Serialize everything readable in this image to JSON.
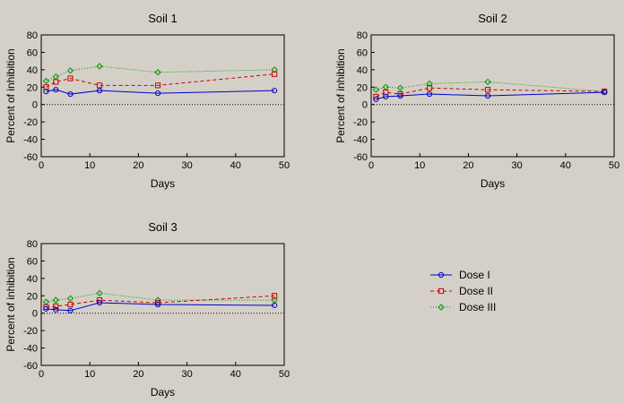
{
  "chart_data": [
    {
      "type": "line",
      "title": "Soil 1",
      "xlabel": "Days",
      "ylabel": "Percent of inhibition",
      "xlim": [
        0,
        50
      ],
      "ylim": [
        -60,
        80
      ],
      "xticks": [
        "0",
        "10",
        "20",
        "30",
        "40",
        "50"
      ],
      "yticks": [
        "80",
        "60",
        "40",
        "20",
        "0",
        "-20",
        "-40",
        "-60"
      ],
      "x": [
        1,
        3,
        6,
        12,
        24,
        48
      ],
      "series": [
        {
          "name": "Dose I",
          "values": [
            15,
            17,
            12,
            16,
            13,
            16
          ]
        },
        {
          "name": "Dose II",
          "values": [
            20,
            26,
            30,
            22,
            22,
            35
          ]
        },
        {
          "name": "Dose III",
          "values": [
            27,
            32,
            39,
            44,
            37,
            40
          ]
        }
      ]
    },
    {
      "type": "line",
      "title": "Soil 2",
      "xlabel": "Days",
      "ylabel": "Percent of inhibition",
      "xlim": [
        0,
        50
      ],
      "ylim": [
        -60,
        80
      ],
      "xticks": [
        "0",
        "10",
        "20",
        "30",
        "40",
        "50"
      ],
      "yticks": [
        "80",
        "60",
        "40",
        "20",
        "0",
        "-20",
        "-40",
        "-60"
      ],
      "x": [
        1,
        3,
        6,
        12,
        24,
        48
      ],
      "series": [
        {
          "name": "Dose I",
          "values": [
            6,
            9,
            10,
            12,
            10,
            14
          ]
        },
        {
          "name": "Dose II",
          "values": [
            9,
            14,
            12,
            19,
            17,
            15
          ]
        },
        {
          "name": "Dose III",
          "values": [
            17,
            20,
            19,
            24,
            26,
            15
          ]
        }
      ]
    },
    {
      "type": "line",
      "title": "Soil 3",
      "xlabel": "Days",
      "ylabel": "Percent of inhibition",
      "xlim": [
        0,
        50
      ],
      "ylim": [
        -60,
        80
      ],
      "xticks": [
        "0",
        "10",
        "20",
        "30",
        "40",
        "50"
      ],
      "yticks": [
        "80",
        "60",
        "40",
        "20",
        "0",
        "-20",
        "-40",
        "-60"
      ],
      "x": [
        1,
        3,
        6,
        12,
        24,
        48
      ],
      "series": [
        {
          "name": "Dose I",
          "values": [
            5,
            4,
            3,
            12,
            10,
            9
          ]
        },
        {
          "name": "Dose II",
          "values": [
            7,
            8,
            10,
            15,
            12,
            20
          ]
        },
        {
          "name": "Dose III",
          "values": [
            13,
            15,
            17,
            23,
            15,
            15
          ]
        }
      ]
    }
  ],
  "legend": {
    "placement": "lower-right",
    "entries": [
      {
        "label": "Dose I",
        "color": "#0000cc",
        "marker": "circle",
        "dash": "solid"
      },
      {
        "label": "Dose II",
        "color": "#cc0000",
        "marker": "square",
        "dash": "dashed"
      },
      {
        "label": "Dose III",
        "color": "#009900",
        "marker": "diamond",
        "dash": "dotted"
      }
    ]
  },
  "colors": {
    "background": "#d4d0c8",
    "zero_line": "#000000"
  }
}
